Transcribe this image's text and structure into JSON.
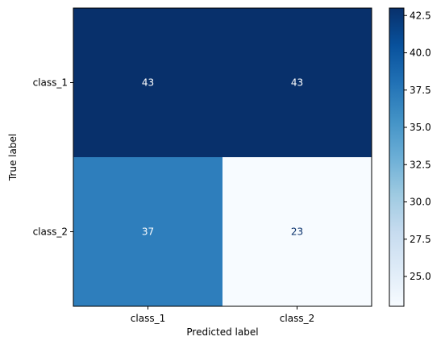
{
  "chart_data": {
    "type": "heatmap",
    "title": "",
    "xlabel": "Predicted label",
    "ylabel": "True label",
    "x_categories": [
      "class_1",
      "class_2"
    ],
    "y_categories": [
      "class_1",
      "class_2"
    ],
    "values": [
      [
        43,
        43
      ],
      [
        37,
        23
      ]
    ],
    "cell_text": [
      [
        "43",
        "43"
      ],
      [
        "37",
        "23"
      ]
    ],
    "colormap": "Blues",
    "color_range": [
      23,
      43
    ],
    "colorbar_ticks": [
      "25.0",
      "27.5",
      "30.0",
      "32.5",
      "35.0",
      "37.5",
      "40.0",
      "42.5"
    ],
    "text_colors": {
      "light": "#ffffff",
      "dark": "#08306b"
    }
  }
}
